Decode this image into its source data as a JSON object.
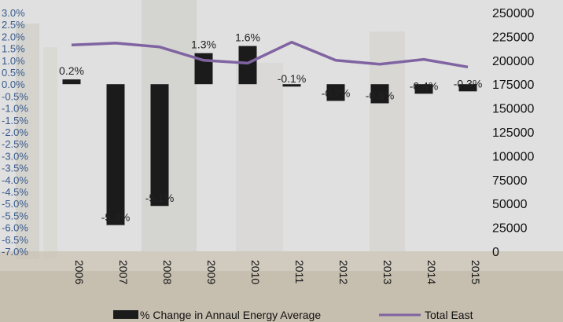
{
  "chart_data": {
    "type": "bar",
    "categories": [
      "2006",
      "2007",
      "2008",
      "2009",
      "2010",
      "2011",
      "2012",
      "2013",
      "2014",
      "2015"
    ],
    "series": [
      {
        "name": "% Change in Annaul Energy Average",
        "type": "bar",
        "axis": "left",
        "values": [
          0.2,
          -5.9,
          -5.1,
          1.3,
          1.6,
          -0.1,
          -0.7,
          -0.8,
          -0.4,
          -0.3
        ],
        "data_labels": [
          "0.2%",
          "-5.9%",
          "-5.1%",
          "1.3%",
          "1.6%",
          "-0.1%",
          "-0.7%",
          "-0.8%",
          "-0.4%",
          "-0.3%"
        ],
        "color": "#1b1b1b"
      },
      {
        "name": "Total East",
        "type": "line",
        "axis": "right",
        "values": [
          216000,
          218000,
          214000,
          200000,
          197000,
          219000,
          200000,
          196000,
          201000,
          193000
        ],
        "color": "#8064a2"
      }
    ],
    "y_left": {
      "ylim": [
        -7.0,
        3.0
      ],
      "step": 0.5,
      "ticks": [
        "3.0%",
        "2.5%",
        "2.0%",
        "1.5%",
        "1.0%",
        "0.5%",
        "0.0%",
        "-0.5%",
        "-1.0%",
        "-1.5%",
        "-2.0%",
        "-2.5%",
        "-3.0%",
        "-3.5%",
        "-4.0%",
        "-4.5%",
        "-5.0%",
        "-5.5%",
        "-6.0%",
        "-6.5%",
        "-7.0%"
      ]
    },
    "y_right": {
      "ylim": [
        0,
        250000
      ],
      "step": 25000,
      "ticks": [
        "250000",
        "225000",
        "200000",
        "175000",
        "150000",
        "125000",
        "100000",
        "75000",
        "50000",
        "25000",
        "0"
      ]
    },
    "title": "",
    "xlabel": "",
    "ylabel": "",
    "grid": false,
    "legend_position": "bottom"
  }
}
